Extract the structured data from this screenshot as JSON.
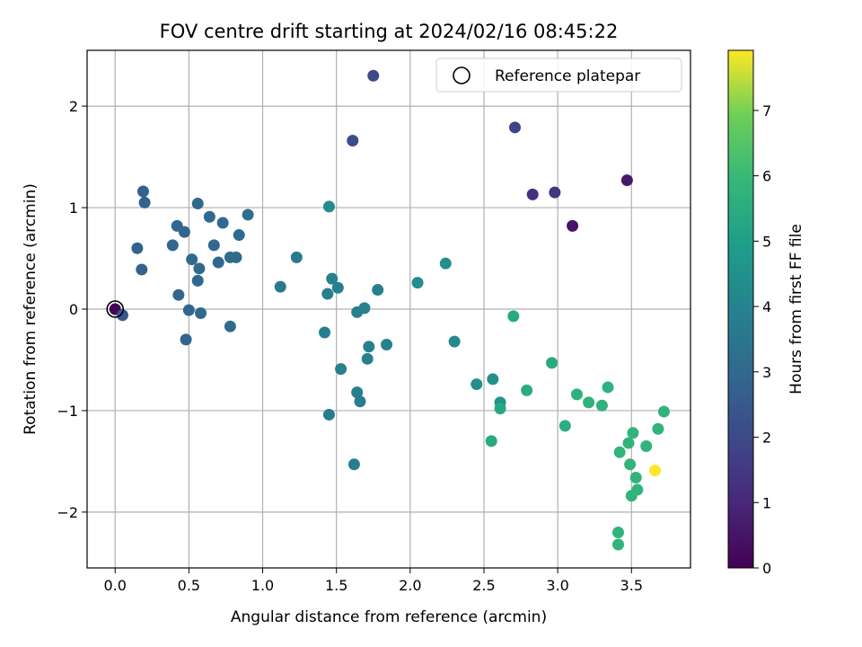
{
  "chart_data": {
    "type": "scatter",
    "title": "FOV centre drift starting at 2024/02/16 08:45:22",
    "xlabel": "Angular distance from reference (arcmin)",
    "ylabel": "Rotation from reference (arcmin)",
    "xlim": [
      -0.19,
      3.9
    ],
    "ylim": [
      -2.55,
      2.55
    ],
    "xticks": [
      0.0,
      0.5,
      1.0,
      1.5,
      2.0,
      2.5,
      3.0,
      3.5
    ],
    "xtick_labels": [
      "0.0",
      "0.5",
      "1.0",
      "1.5",
      "2.0",
      "2.5",
      "3.0",
      "3.5"
    ],
    "yticks": [
      -2,
      -1,
      0,
      1,
      2
    ],
    "ytick_labels": [
      "−2",
      "−1",
      "0",
      "1",
      "2"
    ],
    "grid": true,
    "legend": {
      "position": "top-right",
      "entries": [
        "Reference platepar"
      ]
    },
    "colorbar": {
      "label": "Hours from first FF file",
      "range": [
        0,
        7.92
      ],
      "ticks": [
        0,
        1,
        2,
        3,
        4,
        5,
        6,
        7
      ],
      "tick_labels": [
        "0",
        "1",
        "2",
        "3",
        "4",
        "5",
        "6",
        "7"
      ],
      "colormap": "viridis"
    },
    "reference": {
      "x": 0.0,
      "y": 0.0
    },
    "points": [
      {
        "x": 0.0,
        "y": 0.0,
        "h": 0.1
      },
      {
        "x": 1.75,
        "y": 2.3,
        "h": 2.0
      },
      {
        "x": 1.61,
        "y": 1.66,
        "h": 2.1
      },
      {
        "x": 2.71,
        "y": 1.79,
        "h": 1.8
      },
      {
        "x": 2.83,
        "y": 1.13,
        "h": 1.3
      },
      {
        "x": 2.98,
        "y": 1.15,
        "h": 1.4
      },
      {
        "x": 3.1,
        "y": 0.82,
        "h": 0.5
      },
      {
        "x": 3.47,
        "y": 1.27,
        "h": 0.6
      },
      {
        "x": 0.05,
        "y": -0.06,
        "h": 2.4
      },
      {
        "x": 0.15,
        "y": 0.6,
        "h": 2.8
      },
      {
        "x": 0.18,
        "y": 0.39,
        "h": 2.8
      },
      {
        "x": 0.19,
        "y": 1.16,
        "h": 2.8
      },
      {
        "x": 0.2,
        "y": 1.05,
        "h": 2.8
      },
      {
        "x": 0.39,
        "y": 0.63,
        "h": 2.9
      },
      {
        "x": 0.42,
        "y": 0.82,
        "h": 2.9
      },
      {
        "x": 0.43,
        "y": 0.14,
        "h": 2.9
      },
      {
        "x": 0.47,
        "y": 0.76,
        "h": 2.9
      },
      {
        "x": 0.48,
        "y": -0.3,
        "h": 2.9
      },
      {
        "x": 0.5,
        "y": -0.01,
        "h": 2.9
      },
      {
        "x": 0.52,
        "y": 0.49,
        "h": 3.0
      },
      {
        "x": 0.56,
        "y": 1.04,
        "h": 3.0
      },
      {
        "x": 0.56,
        "y": 0.28,
        "h": 3.0
      },
      {
        "x": 0.57,
        "y": 0.4,
        "h": 3.0
      },
      {
        "x": 0.58,
        "y": -0.04,
        "h": 3.0
      },
      {
        "x": 0.64,
        "y": 0.91,
        "h": 3.0
      },
      {
        "x": 0.67,
        "y": 0.63,
        "h": 3.0
      },
      {
        "x": 0.7,
        "y": 0.46,
        "h": 3.0
      },
      {
        "x": 0.73,
        "y": 0.85,
        "h": 3.0
      },
      {
        "x": 0.78,
        "y": -0.17,
        "h": 3.1
      },
      {
        "x": 0.78,
        "y": 0.51,
        "h": 3.1
      },
      {
        "x": 0.82,
        "y": 0.51,
        "h": 3.1
      },
      {
        "x": 0.84,
        "y": 0.73,
        "h": 3.1
      },
      {
        "x": 0.9,
        "y": 0.93,
        "h": 3.2
      },
      {
        "x": 1.12,
        "y": 0.22,
        "h": 3.6
      },
      {
        "x": 1.23,
        "y": 0.51,
        "h": 3.6
      },
      {
        "x": 1.42,
        "y": -0.23,
        "h": 3.8
      },
      {
        "x": 1.44,
        "y": 0.15,
        "h": 3.9
      },
      {
        "x": 1.45,
        "y": 1.01,
        "h": 4.3
      },
      {
        "x": 1.45,
        "y": -1.04,
        "h": 3.7
      },
      {
        "x": 1.47,
        "y": 0.3,
        "h": 3.9
      },
      {
        "x": 1.51,
        "y": 0.21,
        "h": 3.9
      },
      {
        "x": 1.53,
        "y": -0.59,
        "h": 3.9
      },
      {
        "x": 1.62,
        "y": -1.53,
        "h": 3.8
      },
      {
        "x": 1.64,
        "y": -0.82,
        "h": 3.8
      },
      {
        "x": 1.64,
        "y": -0.03,
        "h": 3.9
      },
      {
        "x": 1.66,
        "y": -0.91,
        "h": 3.8
      },
      {
        "x": 1.69,
        "y": 0.01,
        "h": 3.9
      },
      {
        "x": 1.71,
        "y": -0.49,
        "h": 3.9
      },
      {
        "x": 1.72,
        "y": -0.37,
        "h": 3.9
      },
      {
        "x": 1.78,
        "y": 0.19,
        "h": 3.9
      },
      {
        "x": 1.84,
        "y": -0.35,
        "h": 3.9
      },
      {
        "x": 2.05,
        "y": 0.26,
        "h": 4.3
      },
      {
        "x": 2.24,
        "y": 0.45,
        "h": 4.4
      },
      {
        "x": 2.3,
        "y": -0.32,
        "h": 4.2
      },
      {
        "x": 2.45,
        "y": -0.74,
        "h": 4.4
      },
      {
        "x": 2.55,
        "y": -1.3,
        "h": 5.4
      },
      {
        "x": 2.56,
        "y": -0.69,
        "h": 4.5
      },
      {
        "x": 2.61,
        "y": -0.92,
        "h": 4.6
      },
      {
        "x": 2.61,
        "y": -0.98,
        "h": 5.3
      },
      {
        "x": 2.7,
        "y": -0.07,
        "h": 5.4
      },
      {
        "x": 2.79,
        "y": -0.8,
        "h": 5.5
      },
      {
        "x": 2.96,
        "y": -0.53,
        "h": 5.4
      },
      {
        "x": 3.05,
        "y": -1.15,
        "h": 5.6
      },
      {
        "x": 3.13,
        "y": -0.84,
        "h": 5.7
      },
      {
        "x": 3.21,
        "y": -0.92,
        "h": 5.7
      },
      {
        "x": 3.3,
        "y": -0.95,
        "h": 5.7
      },
      {
        "x": 3.34,
        "y": -0.77,
        "h": 5.7
      },
      {
        "x": 3.41,
        "y": -2.2,
        "h": 5.8
      },
      {
        "x": 3.41,
        "y": -2.32,
        "h": 5.8
      },
      {
        "x": 3.42,
        "y": -1.41,
        "h": 5.8
      },
      {
        "x": 3.48,
        "y": -1.32,
        "h": 5.8
      },
      {
        "x": 3.49,
        "y": -1.53,
        "h": 5.8
      },
      {
        "x": 3.5,
        "y": -1.84,
        "h": 5.8
      },
      {
        "x": 3.51,
        "y": -1.22,
        "h": 5.8
      },
      {
        "x": 3.53,
        "y": -1.66,
        "h": 5.8
      },
      {
        "x": 3.54,
        "y": -1.78,
        "h": 5.8
      },
      {
        "x": 3.6,
        "y": -1.35,
        "h": 5.8
      },
      {
        "x": 3.66,
        "y": -1.59,
        "h": 7.9
      },
      {
        "x": 3.68,
        "y": -1.18,
        "h": 5.8
      },
      {
        "x": 3.72,
        "y": -1.01,
        "h": 5.8
      }
    ]
  }
}
